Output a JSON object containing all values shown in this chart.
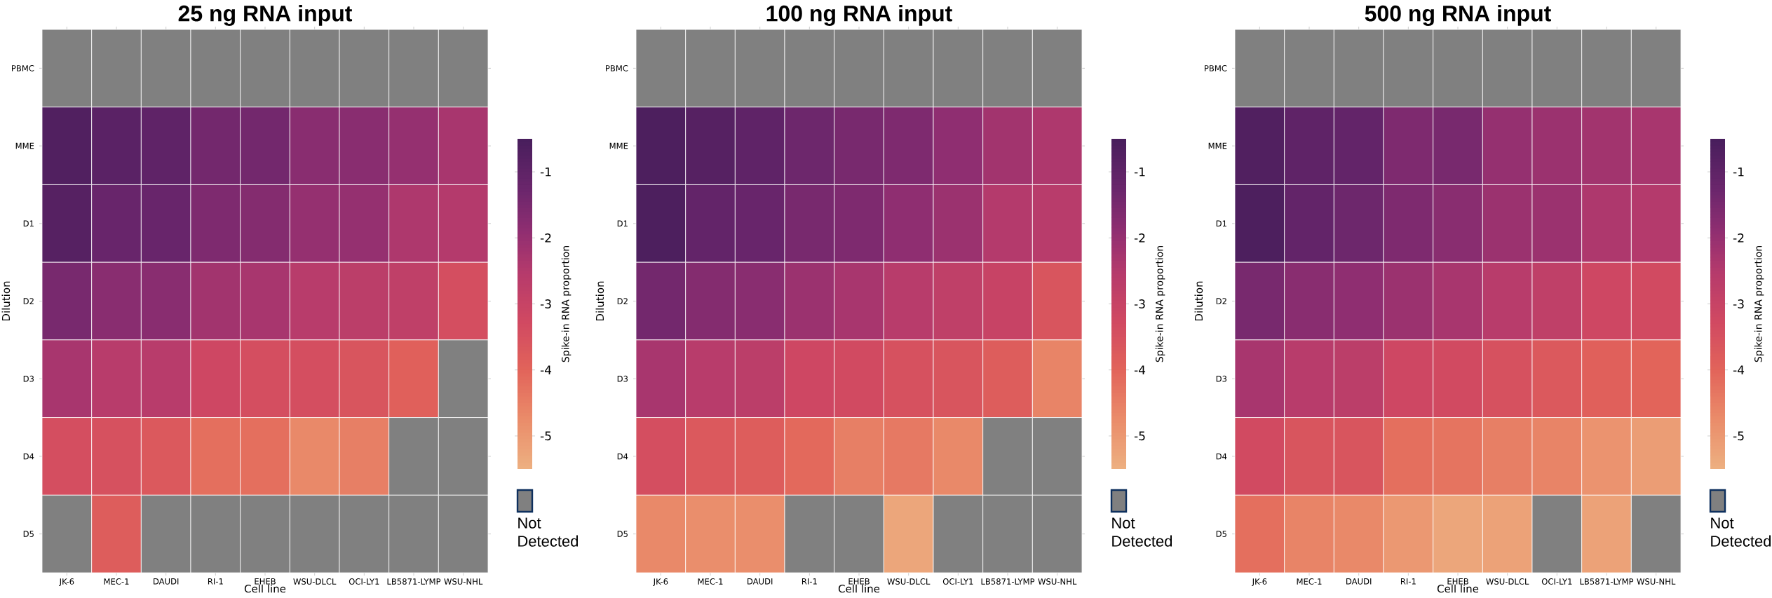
{
  "chart_data": [
    {
      "type": "heatmap",
      "title": "25 ng RNA input",
      "xlabel": "Cell line",
      "ylabel": "Dilution",
      "clabel": "Spike-in RNA proportion",
      "categories": [
        "JK-6",
        "MEC-1",
        "DAUDI",
        "RI-1",
        "EHEB",
        "WSU-DLCL",
        "OCI-LY1",
        "LB5871-LYMP",
        "WSU-NHL"
      ],
      "y_categories": [
        "PBMC",
        "MME",
        "D1",
        "D2",
        "D3",
        "D4",
        "D5"
      ],
      "cells": [
        [
          null,
          null,
          null,
          null,
          null,
          null,
          null,
          null,
          null
        ],
        [
          -0.7,
          -0.9,
          -1.0,
          -1.4,
          -1.4,
          -1.8,
          -1.8,
          -2.0,
          -2.3
        ],
        [
          -0.8,
          -1.2,
          -1.2,
          -1.6,
          -1.7,
          -2.0,
          -2.0,
          -2.4,
          -2.5
        ],
        [
          -1.5,
          -1.8,
          -1.8,
          -2.2,
          -2.3,
          -2.6,
          -2.7,
          -2.8,
          -3.4
        ],
        [
          -2.3,
          -2.6,
          -2.6,
          -3.2,
          -3.4,
          -3.4,
          -3.6,
          -3.9,
          null
        ],
        [
          -3.4,
          -3.5,
          -3.7,
          -4.2,
          -4.2,
          -4.7,
          -4.5,
          null,
          null
        ],
        [
          null,
          -3.8,
          null,
          null,
          null,
          null,
          null,
          null,
          null
        ]
      ],
      "clim": [
        -5.5,
        -0.5
      ],
      "cticks": [
        -5,
        -4,
        -3,
        -2,
        -1
      ],
      "annotations": [
        "Not Detected"
      ]
    },
    {
      "type": "heatmap",
      "title": "100 ng RNA input",
      "xlabel": "Cell line",
      "ylabel": "Dilution",
      "clabel": "Spike-in RNA proportion",
      "categories": [
        "JK-6",
        "MEC-1",
        "DAUDI",
        "RI-1",
        "EHEB",
        "WSU-DLCL",
        "OCI-LY1",
        "LB5871-LYMP",
        "WSU-NHL"
      ],
      "y_categories": [
        "PBMC",
        "MME",
        "D1",
        "D2",
        "D3",
        "D4",
        "D5"
      ],
      "cells": [
        [
          null,
          null,
          null,
          null,
          null,
          null,
          null,
          null,
          null
        ],
        [
          -0.6,
          -0.8,
          -1.0,
          -1.3,
          -1.5,
          -1.6,
          -1.9,
          -2.2,
          -2.4
        ],
        [
          -0.6,
          -1.1,
          -1.2,
          -1.5,
          -1.6,
          -1.9,
          -2.1,
          -2.5,
          -2.6
        ],
        [
          -1.4,
          -1.7,
          -1.8,
          -2.1,
          -2.3,
          -2.6,
          -2.8,
          -3.0,
          -3.6
        ],
        [
          -2.3,
          -2.6,
          -2.7,
          -3.2,
          -3.3,
          -3.5,
          -3.6,
          -3.8,
          -4.6
        ],
        [
          -3.4,
          -3.7,
          -3.8,
          -4.1,
          -4.5,
          -4.4,
          -4.7,
          null,
          null
        ],
        [
          -4.7,
          -4.8,
          -4.8,
          null,
          null,
          -5.3,
          null,
          null,
          null
        ]
      ],
      "clim": [
        -5.5,
        -0.5
      ],
      "cticks": [
        -5,
        -4,
        -3,
        -2,
        -1
      ],
      "annotations": [
        "Not Detected"
      ]
    },
    {
      "type": "heatmap",
      "title": "500 ng RNA input",
      "xlabel": "Cell line",
      "ylabel": "Dilution",
      "clabel": "Spike-in RNA proportion",
      "categories": [
        "JK-6",
        "MEC-1",
        "DAUDI",
        "RI-1",
        "EHEB",
        "WSU-DLCL",
        "OCI-LY1",
        "LB5871-LYMP",
        "WSU-NHL"
      ],
      "y_categories": [
        "PBMC",
        "MME",
        "D1",
        "D2",
        "D3",
        "D4",
        "D5"
      ],
      "cells": [
        [
          null,
          null,
          null,
          null,
          null,
          null,
          null,
          null,
          null
        ],
        [
          -0.7,
          -1.0,
          -1.1,
          -1.6,
          -1.5,
          -2.0,
          -2.1,
          -2.2,
          -2.3
        ],
        [
          -0.6,
          -1.1,
          -1.3,
          -1.6,
          -1.8,
          -2.1,
          -2.1,
          -2.4,
          -2.5
        ],
        [
          -1.5,
          -1.8,
          -1.9,
          -2.1,
          -2.3,
          -2.6,
          -2.8,
          -3.2,
          -3.3
        ],
        [
          -2.3,
          -2.6,
          -2.7,
          -3.2,
          -3.3,
          -3.5,
          -3.7,
          -3.9,
          -4.0
        ],
        [
          -3.3,
          -3.6,
          -3.6,
          -4.2,
          -4.3,
          -4.5,
          -4.6,
          -4.9,
          -5.1
        ],
        [
          -4.2,
          -4.6,
          -4.7,
          -5.0,
          -5.3,
          -5.2,
          null,
          -5.2,
          null
        ]
      ],
      "clim": [
        -5.5,
        -0.5
      ],
      "cticks": [
        -5,
        -4,
        -3,
        -2,
        -1
      ],
      "annotations": [
        "Not Detected"
      ]
    }
  ]
}
